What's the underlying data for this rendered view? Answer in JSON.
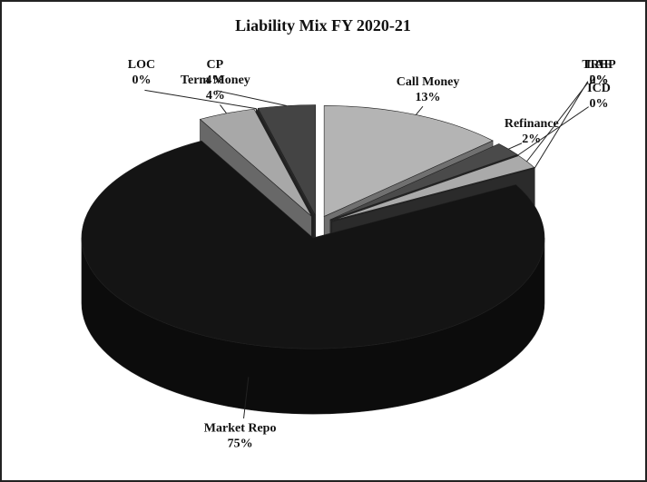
{
  "chart_data": {
    "type": "pie",
    "title": "Liability Mix FY 2020-21",
    "categories": [
      "Call Money",
      "Refinance",
      "ICD",
      "TREP",
      "LAF",
      "Market Repo",
      "Term Money",
      "LOC",
      "CP"
    ],
    "values": [
      13,
      2,
      0,
      2,
      0,
      75,
      4,
      0,
      4
    ],
    "value_labels": [
      "13%",
      "2%",
      "0%",
      "2%",
      "0%",
      "75%",
      "4%",
      "0%",
      "4%"
    ],
    "colors": [
      "#b4b4b4",
      "#4a4a4a",
      "#e6e6e6",
      "#aaaaaa",
      "#454545",
      "#141414",
      "#a8a8a8",
      "#333333",
      "#444444"
    ]
  }
}
